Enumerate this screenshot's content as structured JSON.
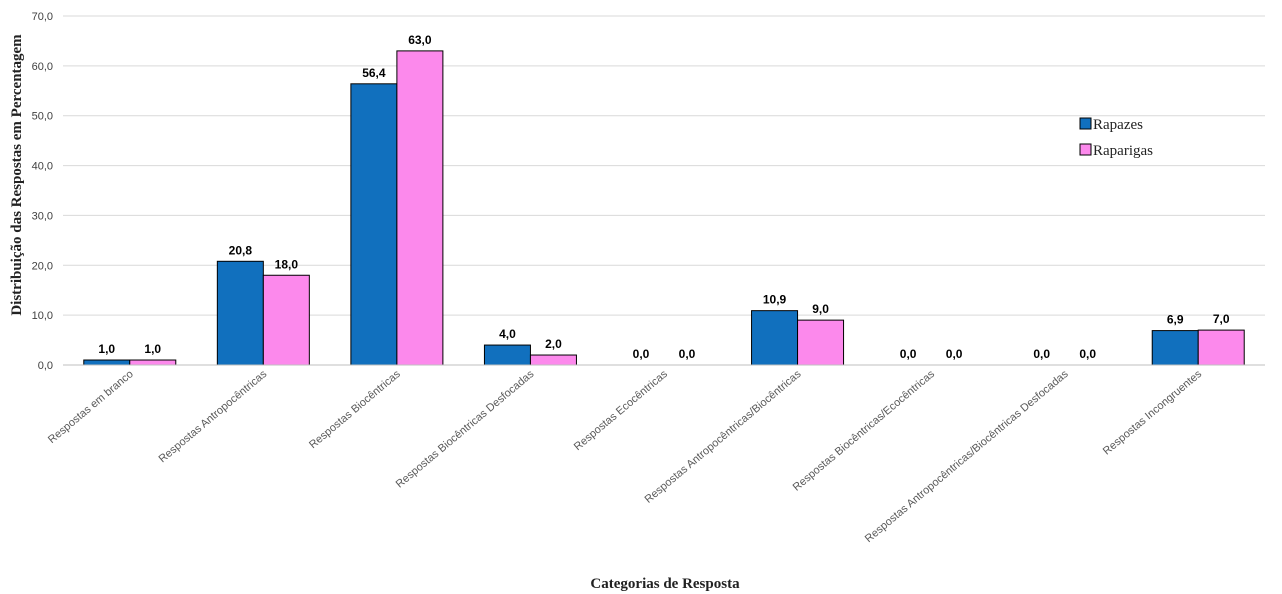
{
  "chart_data": {
    "type": "bar",
    "categories": [
      "Respostas em branco",
      "Respostas Antropocêntricas",
      "Respostas Biocêntricas",
      "Respostas Biocêntricas Desfocadas",
      "Respostas Ecocêntricas",
      "Respostas Antropocêntricas/Biocêntricas",
      "Respostas Biocêntricas/Ecocêntricas",
      "Respostas Antropocêntricas/Biocêntricas Desfocadas",
      "Respostas Incongruentes"
    ],
    "series": [
      {
        "name": "Rapazes",
        "color": "#1170BE",
        "values": [
          1.0,
          20.8,
          56.4,
          4.0,
          0.0,
          10.9,
          0.0,
          0.0,
          6.9
        ],
        "labels": [
          "1,0",
          "20,8",
          "56,4",
          "4,0",
          "0,0",
          "10,9",
          "0,0",
          "0,0",
          "6,9"
        ]
      },
      {
        "name": "Raparigas",
        "color": "#FC89EC",
        "values": [
          1.0,
          18.0,
          63.0,
          2.0,
          0.0,
          9.0,
          0.0,
          0.0,
          7.0
        ],
        "labels": [
          "1,0",
          "18,0",
          "63,0",
          "2,0",
          "0,0",
          "9,0",
          "0,0",
          "0,0",
          "7,0"
        ]
      }
    ],
    "xlabel": "Categorias de Resposta",
    "ylabel": "Distribuição das Respostas em Percentagem",
    "ylim": [
      0,
      70
    ],
    "yticks": [
      0,
      10,
      20,
      30,
      40,
      50,
      60,
      70
    ],
    "ytick_labels": [
      "0,0",
      "10,0",
      "20,0",
      "30,0",
      "40,0",
      "50,0",
      "60,0",
      "70,0"
    ],
    "grid": true,
    "legend_position": "right"
  }
}
